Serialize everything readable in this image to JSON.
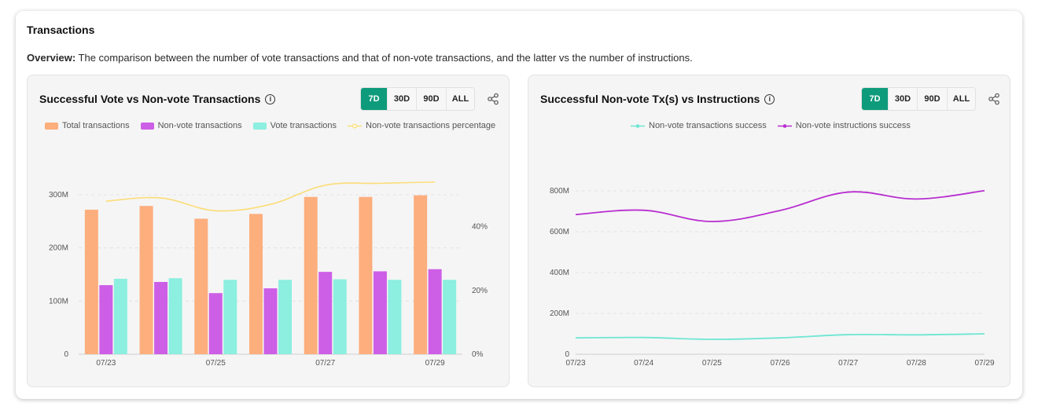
{
  "section": {
    "title": "Transactions",
    "overview_label": "Overview:",
    "overview_text": " The comparison between the number of vote transactions and that of non-vote transactions, and the latter vs the number of instructions."
  },
  "ranges": [
    "7D",
    "30D",
    "90D",
    "ALL"
  ],
  "active_range": "7D",
  "colors": {
    "total": "#fdae7d",
    "nonvote": "#cd5fe6",
    "vote": "#8cefdf",
    "percentage": "#fbdd77",
    "tx_success": "#6ee6d3",
    "ix_success": "#b82ed0",
    "accent": "#0e9b7b"
  },
  "chart_data": [
    {
      "type": "bar",
      "title": "Successful Vote vs Non-vote Transactions",
      "categories": [
        "07/23",
        "07/24",
        "07/25",
        "07/26",
        "07/27",
        "07/28",
        "07/29"
      ],
      "x_tick_labels": [
        "07/23",
        "",
        "07/25",
        "",
        "07/27",
        "",
        "07/29"
      ],
      "series": [
        {
          "name": "Total transactions",
          "values": [
            272,
            279,
            255,
            264,
            296,
            296,
            299
          ]
        },
        {
          "name": "Non-vote transactions",
          "values": [
            130,
            136,
            115,
            124,
            155,
            156,
            160
          ]
        },
        {
          "name": "Vote transactions",
          "values": [
            142,
            143,
            140,
            140,
            141,
            140,
            140
          ]
        },
        {
          "name": "Non-vote transactions percentage",
          "type": "line",
          "axis": "right",
          "values": [
            48,
            49,
            45,
            47,
            53,
            53.6,
            54
          ]
        }
      ],
      "ylim": [
        0,
        300
      ],
      "y_ticks": [
        "0",
        "100M",
        "200M",
        "300M"
      ],
      "y2lim": [
        0,
        50
      ],
      "y2_ticks": [
        "0%",
        "20%",
        "40%"
      ],
      "grid": true,
      "legend": "top"
    },
    {
      "type": "line",
      "title": "Successful Non-vote Tx(s) vs Instructions",
      "categories": [
        "07/23",
        "07/24",
        "07/25",
        "07/26",
        "07/27",
        "07/28",
        "07/29"
      ],
      "series": [
        {
          "name": "Non-vote transactions success",
          "values": [
            80,
            82,
            73,
            80,
            96,
            95,
            100
          ]
        },
        {
          "name": "Non-vote instructions success",
          "values": [
            684,
            705,
            650,
            704,
            794,
            760,
            801
          ]
        }
      ],
      "ylim": [
        0,
        800
      ],
      "y_ticks": [
        "0",
        "200M",
        "400M",
        "600M",
        "800M"
      ],
      "grid": true,
      "legend": "top"
    }
  ]
}
